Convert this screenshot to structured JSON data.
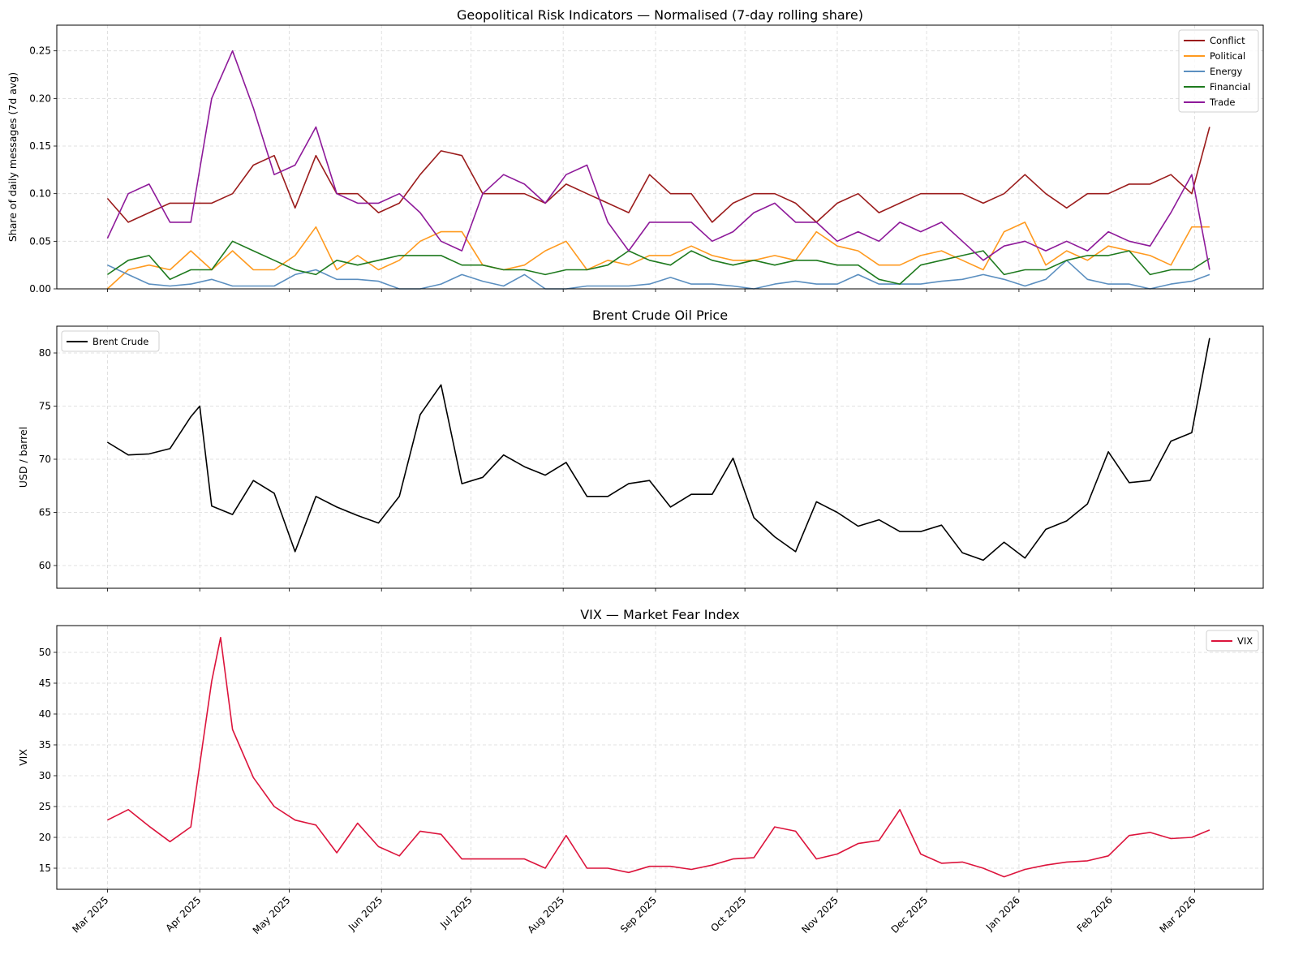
{
  "x_tick_labels": [
    "Mar 2025",
    "Apr 2025",
    "May 2025",
    "Jun 2025",
    "Jul 2025",
    "Aug 2025",
    "Sep 2025",
    "Oct 2025",
    "Nov 2025",
    "Dec 2025",
    "Jan 2026",
    "Feb 2026",
    "Mar 2026"
  ],
  "x_tick_dates": [
    "2025-03-01",
    "2025-04-01",
    "2025-05-01",
    "2025-06-01",
    "2025-07-01",
    "2025-08-01",
    "2025-09-01",
    "2025-10-01",
    "2025-11-01",
    "2025-12-01",
    "2026-01-01",
    "2026-02-01",
    "2026-03-01"
  ],
  "xlim": [
    "2025-02-12",
    "2026-03-24"
  ],
  "chart_data": [
    {
      "type": "line",
      "title": "Geopolitical Risk Indicators — Normalised (7-day rolling share)",
      "xlabel": "",
      "ylabel": "Share of daily messages (7d avg)",
      "ylim": [
        0,
        0.277
      ],
      "yticks": [
        0,
        0.05,
        0.1,
        0.15,
        0.2,
        0.25
      ],
      "ytick_labels": [
        "0.00",
        "0.05",
        "0.10",
        "0.15",
        "0.20",
        "0.25"
      ],
      "grid": true,
      "legend": "top-right",
      "x": [
        "2025-03-01",
        "2025-03-08",
        "2025-03-15",
        "2025-03-22",
        "2025-03-29",
        "2025-04-05",
        "2025-04-12",
        "2025-04-19",
        "2025-04-26",
        "2025-05-03",
        "2025-05-10",
        "2025-05-17",
        "2025-05-24",
        "2025-05-31",
        "2025-06-07",
        "2025-06-14",
        "2025-06-21",
        "2025-06-28",
        "2025-07-05",
        "2025-07-12",
        "2025-07-19",
        "2025-07-26",
        "2025-08-02",
        "2025-08-09",
        "2025-08-16",
        "2025-08-23",
        "2025-08-30",
        "2025-09-06",
        "2025-09-13",
        "2025-09-20",
        "2025-09-27",
        "2025-10-04",
        "2025-10-11",
        "2025-10-18",
        "2025-10-25",
        "2025-11-01",
        "2025-11-08",
        "2025-11-15",
        "2025-11-22",
        "2025-11-29",
        "2025-12-06",
        "2025-12-13",
        "2025-12-20",
        "2025-12-27",
        "2026-01-03",
        "2026-01-10",
        "2026-01-17",
        "2026-01-24",
        "2026-01-31",
        "2026-02-07",
        "2026-02-14",
        "2026-02-21",
        "2026-02-28",
        "2026-03-06"
      ],
      "series": [
        {
          "name": "Conflict",
          "color": "#9b1c1c",
          "values": [
            0.095,
            0.07,
            0.08,
            0.09,
            0.09,
            0.09,
            0.1,
            0.13,
            0.14,
            0.085,
            0.14,
            0.1,
            0.1,
            0.08,
            0.09,
            0.12,
            0.145,
            0.14,
            0.1,
            0.1,
            0.1,
            0.09,
            0.11,
            0.1,
            0.09,
            0.08,
            0.12,
            0.1,
            0.1,
            0.07,
            0.09,
            0.1,
            0.1,
            0.09,
            0.07,
            0.09,
            0.1,
            0.08,
            0.09,
            0.1,
            0.1,
            0.1,
            0.09,
            0.1,
            0.12,
            0.1,
            0.085,
            0.1,
            0.1,
            0.11,
            0.11,
            0.12,
            0.1,
            0.17
          ]
        },
        {
          "name": "Political",
          "color": "#ff9a1f",
          "values": [
            0.0,
            0.02,
            0.025,
            0.02,
            0.04,
            0.02,
            0.04,
            0.02,
            0.02,
            0.035,
            0.065,
            0.02,
            0.035,
            0.02,
            0.03,
            0.05,
            0.06,
            0.06,
            0.025,
            0.02,
            0.025,
            0.04,
            0.05,
            0.02,
            0.03,
            0.025,
            0.035,
            0.035,
            0.045,
            0.035,
            0.03,
            0.03,
            0.035,
            0.03,
            0.06,
            0.045,
            0.04,
            0.025,
            0.025,
            0.035,
            0.04,
            0.03,
            0.02,
            0.06,
            0.07,
            0.025,
            0.04,
            0.03,
            0.045,
            0.04,
            0.035,
            0.025,
            0.065,
            0.065
          ]
        },
        {
          "name": "Energy",
          "color": "#5b8fc0",
          "values": [
            0.025,
            0.015,
            0.005,
            0.003,
            0.005,
            0.01,
            0.003,
            0.003,
            0.003,
            0.015,
            0.02,
            0.01,
            0.01,
            0.008,
            0.0,
            0.0,
            0.005,
            0.015,
            0.008,
            0.003,
            0.015,
            0.0,
            0.0,
            0.003,
            0.003,
            0.003,
            0.005,
            0.012,
            0.005,
            0.005,
            0.003,
            0.0,
            0.005,
            0.008,
            0.005,
            0.005,
            0.015,
            0.005,
            0.005,
            0.005,
            0.008,
            0.01,
            0.015,
            0.01,
            0.003,
            0.01,
            0.03,
            0.01,
            0.005,
            0.005,
            0.0,
            0.005,
            0.008,
            0.015
          ]
        },
        {
          "name": "Financial",
          "color": "#1e7a1e",
          "values": [
            0.015,
            0.03,
            0.035,
            0.01,
            0.02,
            0.02,
            0.05,
            0.04,
            0.03,
            0.02,
            0.015,
            0.03,
            0.025,
            0.03,
            0.035,
            0.035,
            0.035,
            0.025,
            0.025,
            0.02,
            0.02,
            0.015,
            0.02,
            0.02,
            0.025,
            0.04,
            0.03,
            0.025,
            0.04,
            0.03,
            0.025,
            0.03,
            0.025,
            0.03,
            0.03,
            0.025,
            0.025,
            0.01,
            0.005,
            0.025,
            0.03,
            0.035,
            0.04,
            0.015,
            0.02,
            0.02,
            0.03,
            0.035,
            0.035,
            0.04,
            0.015,
            0.02,
            0.02,
            0.032
          ]
        },
        {
          "name": "Trade",
          "color": "#8e1a9a",
          "values": [
            0.053,
            0.1,
            0.11,
            0.07,
            0.07,
            0.2,
            0.25,
            0.19,
            0.12,
            0.13,
            0.17,
            0.1,
            0.09,
            0.09,
            0.1,
            0.08,
            0.05,
            0.04,
            0.1,
            0.12,
            0.11,
            0.09,
            0.12,
            0.13,
            0.07,
            0.04,
            0.07,
            0.07,
            0.07,
            0.05,
            0.06,
            0.08,
            0.09,
            0.07,
            0.07,
            0.05,
            0.06,
            0.05,
            0.07,
            0.06,
            0.07,
            0.05,
            0.03,
            0.045,
            0.05,
            0.04,
            0.05,
            0.04,
            0.06,
            0.05,
            0.045,
            0.08,
            0.12,
            0.02
          ]
        }
      ]
    },
    {
      "type": "line",
      "title": "Brent Crude Oil Price",
      "xlabel": "",
      "ylabel": "USD / barrel",
      "ylim": [
        57.86,
        82.52
      ],
      "yticks": [
        60,
        65,
        70,
        75,
        80
      ],
      "ytick_labels": [
        "60",
        "65",
        "70",
        "75",
        "80"
      ],
      "grid": true,
      "legend": "top-left",
      "x": [
        "2025-03-01",
        "2025-03-08",
        "2025-03-15",
        "2025-03-22",
        "2025-03-29",
        "2025-04-01",
        "2025-04-05",
        "2025-04-12",
        "2025-04-19",
        "2025-04-26",
        "2025-05-03",
        "2025-05-10",
        "2025-05-17",
        "2025-05-24",
        "2025-05-31",
        "2025-06-07",
        "2025-06-14",
        "2025-06-21",
        "2025-06-28",
        "2025-07-05",
        "2025-07-12",
        "2025-07-19",
        "2025-07-26",
        "2025-08-02",
        "2025-08-09",
        "2025-08-16",
        "2025-08-23",
        "2025-08-30",
        "2025-09-06",
        "2025-09-13",
        "2025-09-20",
        "2025-09-27",
        "2025-10-04",
        "2025-10-11",
        "2025-10-18",
        "2025-10-25",
        "2025-11-01",
        "2025-11-08",
        "2025-11-15",
        "2025-11-22",
        "2025-11-29",
        "2025-12-06",
        "2025-12-13",
        "2025-12-20",
        "2025-12-27",
        "2026-01-03",
        "2026-01-10",
        "2026-01-17",
        "2026-01-24",
        "2026-01-31",
        "2026-02-07",
        "2026-02-14",
        "2026-02-21",
        "2026-02-28",
        "2026-03-06"
      ],
      "series": [
        {
          "name": "Brent Crude",
          "color": "#000000",
          "values": [
            71.6,
            70.4,
            70.5,
            71.0,
            74.0,
            75.0,
            65.6,
            64.8,
            68.0,
            66.8,
            61.3,
            66.5,
            65.5,
            64.7,
            64.0,
            66.5,
            74.2,
            77.0,
            67.7,
            68.3,
            70.4,
            69.3,
            68.5,
            69.7,
            66.5,
            66.5,
            67.7,
            68.0,
            65.5,
            66.7,
            66.7,
            70.1,
            64.5,
            62.7,
            61.3,
            66.0,
            65.0,
            63.7,
            64.3,
            63.2,
            63.2,
            63.8,
            61.2,
            60.5,
            62.2,
            60.7,
            63.4,
            64.2,
            65.8,
            70.7,
            67.8,
            68.0,
            71.7,
            72.5,
            81.4
          ]
        }
      ]
    },
    {
      "type": "line",
      "title": "VIX — Market Fear Index",
      "xlabel": "",
      "ylabel": "VIX",
      "ylim": [
        11.58,
        54.34
      ],
      "yticks": [
        15,
        20,
        25,
        30,
        35,
        40,
        45,
        50
      ],
      "ytick_labels": [
        "15",
        "20",
        "25",
        "30",
        "35",
        "40",
        "45",
        "50"
      ],
      "grid": true,
      "legend": "top-right",
      "x": [
        "2025-03-01",
        "2025-03-08",
        "2025-03-15",
        "2025-03-22",
        "2025-03-29",
        "2025-04-05",
        "2025-04-08",
        "2025-04-12",
        "2025-04-19",
        "2025-04-26",
        "2025-05-03",
        "2025-05-10",
        "2025-05-17",
        "2025-05-24",
        "2025-05-31",
        "2025-06-07",
        "2025-06-14",
        "2025-06-21",
        "2025-06-28",
        "2025-07-05",
        "2025-07-12",
        "2025-07-19",
        "2025-07-26",
        "2025-08-02",
        "2025-08-09",
        "2025-08-16",
        "2025-08-23",
        "2025-08-30",
        "2025-09-06",
        "2025-09-13",
        "2025-09-20",
        "2025-09-27",
        "2025-10-04",
        "2025-10-11",
        "2025-10-18",
        "2025-10-25",
        "2025-11-01",
        "2025-11-08",
        "2025-11-15",
        "2025-11-22",
        "2025-11-29",
        "2025-12-06",
        "2025-12-13",
        "2025-12-20",
        "2025-12-27",
        "2026-01-03",
        "2026-01-10",
        "2026-01-17",
        "2026-01-24",
        "2026-01-31",
        "2026-02-07",
        "2026-02-14",
        "2026-02-21",
        "2026-02-28",
        "2026-03-06"
      ],
      "series": [
        {
          "name": "VIX",
          "color": "#dc143c",
          "values": [
            22.8,
            24.5,
            21.8,
            19.3,
            21.7,
            45.3,
            52.4,
            37.5,
            29.7,
            25.0,
            22.8,
            22.0,
            17.5,
            22.3,
            18.5,
            17.0,
            21.0,
            20.5,
            16.5,
            16.5,
            16.5,
            16.5,
            15.0,
            20.3,
            15.0,
            15.0,
            14.3,
            15.3,
            15.3,
            14.8,
            15.5,
            16.5,
            16.7,
            21.7,
            21.0,
            16.5,
            17.3,
            19.0,
            19.5,
            24.5,
            17.3,
            15.8,
            16.0,
            15.0,
            13.6,
            14.8,
            15.5,
            16.0,
            16.2,
            17.0,
            20.3,
            20.8,
            19.8,
            20.0,
            21.2
          ]
        }
      ]
    }
  ]
}
